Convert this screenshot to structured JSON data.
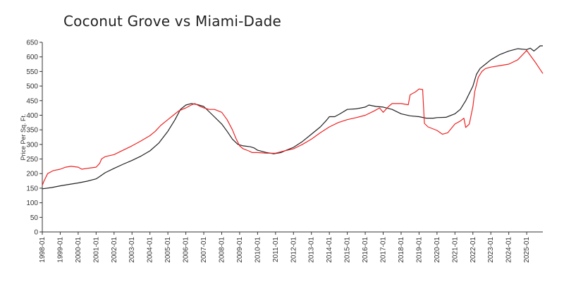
{
  "chart_data": {
    "type": "line",
    "title": "Coconut Grove vs Miami-Dade",
    "xlabel": "",
    "ylabel": "Price Per Sq. Ft.",
    "ylim": [
      0,
      650
    ],
    "yticks": [
      0,
      50,
      100,
      150,
      200,
      250,
      300,
      350,
      400,
      450,
      500,
      550,
      600,
      650
    ],
    "xticks": [
      "1998-01",
      "1999-01",
      "2000-01",
      "2001-01",
      "2002-01",
      "2003-01",
      "2004-01",
      "2005-01",
      "2006-01",
      "2007-01",
      "2008-01",
      "2009-01",
      "2010-01",
      "2011-01",
      "2012-01",
      "2013-01",
      "2014-01",
      "2015-01",
      "2016-01",
      "2017-01",
      "2018-01",
      "2019-01",
      "2020-01",
      "2021-01",
      "2022-01",
      "2023-01",
      "2024-01",
      "2025-01"
    ],
    "xlim": [
      1998.0,
      2025.9
    ],
    "legend": "none",
    "series": [
      {
        "name": "Miami-Dade",
        "color": "#222222",
        "points": [
          [
            1998.0,
            148
          ],
          [
            1998.5,
            152
          ],
          [
            1999.0,
            158
          ],
          [
            1999.5,
            163
          ],
          [
            2000.0,
            168
          ],
          [
            2000.5,
            174
          ],
          [
            2001.0,
            182
          ],
          [
            2001.2,
            190
          ],
          [
            2001.5,
            203
          ],
          [
            2002.0,
            218
          ],
          [
            2002.5,
            232
          ],
          [
            2003.0,
            245
          ],
          [
            2003.5,
            260
          ],
          [
            2004.0,
            278
          ],
          [
            2004.5,
            305
          ],
          [
            2005.0,
            345
          ],
          [
            2005.4,
            385
          ],
          [
            2005.7,
            420
          ],
          [
            2006.0,
            435
          ],
          [
            2006.3,
            440
          ],
          [
            2006.6,
            437
          ],
          [
            2007.0,
            430
          ],
          [
            2007.5,
            400
          ],
          [
            2008.0,
            370
          ],
          [
            2008.3,
            345
          ],
          [
            2008.6,
            318
          ],
          [
            2008.9,
            300
          ],
          [
            2009.2,
            295
          ],
          [
            2009.6,
            292
          ],
          [
            2009.8,
            288
          ],
          [
            2010.0,
            280
          ],
          [
            2010.5,
            272
          ],
          [
            2010.9,
            268
          ],
          [
            2011.3,
            272
          ],
          [
            2011.6,
            280
          ],
          [
            2012.0,
            290
          ],
          [
            2012.5,
            310
          ],
          [
            2013.0,
            335
          ],
          [
            2013.5,
            360
          ],
          [
            2013.8,
            380
          ],
          [
            2014.0,
            395
          ],
          [
            2014.3,
            395
          ],
          [
            2014.6,
            405
          ],
          [
            2015.0,
            420
          ],
          [
            2015.5,
            422
          ],
          [
            2016.0,
            428
          ],
          [
            2016.2,
            435
          ],
          [
            2016.6,
            430
          ],
          [
            2017.0,
            428
          ],
          [
            2017.5,
            420
          ],
          [
            2018.0,
            405
          ],
          [
            2018.5,
            398
          ],
          [
            2019.0,
            395
          ],
          [
            2019.4,
            390
          ],
          [
            2019.8,
            390
          ],
          [
            2020.0,
            392
          ],
          [
            2020.5,
            393
          ],
          [
            2021.0,
            405
          ],
          [
            2021.3,
            420
          ],
          [
            2021.6,
            450
          ],
          [
            2022.0,
            500
          ],
          [
            2022.2,
            540
          ],
          [
            2022.4,
            560
          ],
          [
            2022.7,
            575
          ],
          [
            2023.0,
            590
          ],
          [
            2023.5,
            608
          ],
          [
            2024.0,
            620
          ],
          [
            2024.5,
            628
          ],
          [
            2025.0,
            625
          ],
          [
            2025.2,
            630
          ],
          [
            2025.4,
            620
          ],
          [
            2025.6,
            630
          ],
          [
            2025.75,
            638
          ],
          [
            2025.9,
            638
          ]
        ]
      },
      {
        "name": "Coconut Grove",
        "color": "#ee2222",
        "points": [
          [
            1998.0,
            160
          ],
          [
            1998.1,
            175
          ],
          [
            1998.3,
            200
          ],
          [
            1998.6,
            210
          ],
          [
            1999.0,
            215
          ],
          [
            1999.3,
            222
          ],
          [
            1999.6,
            225
          ],
          [
            2000.0,
            222
          ],
          [
            2000.2,
            215
          ],
          [
            2000.5,
            218
          ],
          [
            2001.0,
            222
          ],
          [
            2001.2,
            235
          ],
          [
            2001.3,
            250
          ],
          [
            2001.5,
            258
          ],
          [
            2002.0,
            265
          ],
          [
            2002.5,
            280
          ],
          [
            2003.0,
            295
          ],
          [
            2003.5,
            312
          ],
          [
            2004.0,
            330
          ],
          [
            2004.3,
            345
          ],
          [
            2004.6,
            365
          ],
          [
            2005.0,
            385
          ],
          [
            2005.3,
            400
          ],
          [
            2005.6,
            415
          ],
          [
            2006.0,
            425
          ],
          [
            2006.3,
            435
          ],
          [
            2006.5,
            440
          ],
          [
            2006.8,
            430
          ],
          [
            2007.0,
            425
          ],
          [
            2007.3,
            420
          ],
          [
            2007.6,
            420
          ],
          [
            2008.0,
            410
          ],
          [
            2008.3,
            385
          ],
          [
            2008.6,
            350
          ],
          [
            2008.8,
            320
          ],
          [
            2009.0,
            295
          ],
          [
            2009.2,
            285
          ],
          [
            2009.5,
            278
          ],
          [
            2009.7,
            272
          ],
          [
            2010.0,
            272
          ],
          [
            2010.5,
            270
          ],
          [
            2011.0,
            270
          ],
          [
            2011.5,
            278
          ],
          [
            2012.0,
            285
          ],
          [
            2012.5,
            300
          ],
          [
            2013.0,
            318
          ],
          [
            2013.5,
            340
          ],
          [
            2014.0,
            360
          ],
          [
            2014.5,
            375
          ],
          [
            2015.0,
            385
          ],
          [
            2015.5,
            392
          ],
          [
            2016.0,
            400
          ],
          [
            2016.5,
            415
          ],
          [
            2016.8,
            425
          ],
          [
            2017.0,
            410
          ],
          [
            2017.3,
            430
          ],
          [
            2017.5,
            440
          ],
          [
            2018.0,
            440
          ],
          [
            2018.4,
            436
          ],
          [
            2018.5,
            470
          ],
          [
            2018.8,
            480
          ],
          [
            2019.0,
            490
          ],
          [
            2019.2,
            488
          ],
          [
            2019.3,
            372
          ],
          [
            2019.5,
            360
          ],
          [
            2020.0,
            348
          ],
          [
            2020.3,
            335
          ],
          [
            2020.6,
            340
          ],
          [
            2021.0,
            370
          ],
          [
            2021.3,
            380
          ],
          [
            2021.5,
            390
          ],
          [
            2021.6,
            358
          ],
          [
            2021.8,
            370
          ],
          [
            2022.0,
            430
          ],
          [
            2022.1,
            480
          ],
          [
            2022.3,
            530
          ],
          [
            2022.5,
            550
          ],
          [
            2022.7,
            560
          ],
          [
            2023.0,
            565
          ],
          [
            2023.5,
            570
          ],
          [
            2024.0,
            575
          ],
          [
            2024.5,
            590
          ],
          [
            2025.0,
            622
          ],
          [
            2025.5,
            580
          ],
          [
            2025.9,
            543
          ]
        ]
      }
    ]
  }
}
